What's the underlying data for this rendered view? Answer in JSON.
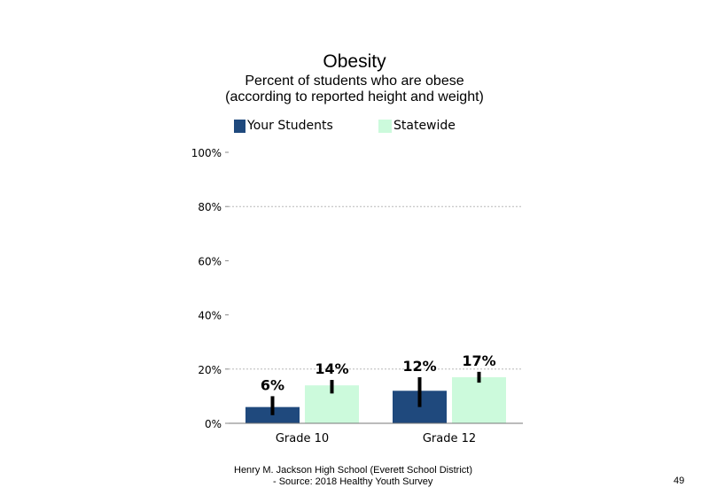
{
  "chart_data": {
    "type": "bar",
    "title": "Obesity",
    "subtitle": [
      "Percent of students who are obese",
      "(according to reported height and weight)"
    ],
    "categories": [
      "Grade 10",
      "Grade 12"
    ],
    "series": [
      {
        "name": "Your Students",
        "color": "#1f497d",
        "values": [
          6,
          12
        ],
        "labels": [
          "6%",
          "12%"
        ],
        "error_low": [
          3,
          6
        ],
        "error_high": [
          10,
          17
        ]
      },
      {
        "name": "Statewide",
        "color": "#ccfadc",
        "values": [
          14,
          17
        ],
        "labels": [
          "14%",
          "17%"
        ],
        "error_low": [
          11,
          15
        ],
        "error_high": [
          16,
          19
        ]
      }
    ],
    "ylim": [
      0,
      100
    ],
    "yticks": [
      0,
      20,
      40,
      60,
      80,
      100
    ],
    "ytick_labels": [
      "0%",
      "20%",
      "40%",
      "60%",
      "80%",
      "100%"
    ],
    "gridlines": [
      20,
      80
    ],
    "legend_position": "top"
  },
  "footer": {
    "line1": "Henry M.  Jackson High  School (Everett School District)",
    "line2": "- Source: 2018 Healthy  Youth Survey"
  },
  "page_number": "49"
}
